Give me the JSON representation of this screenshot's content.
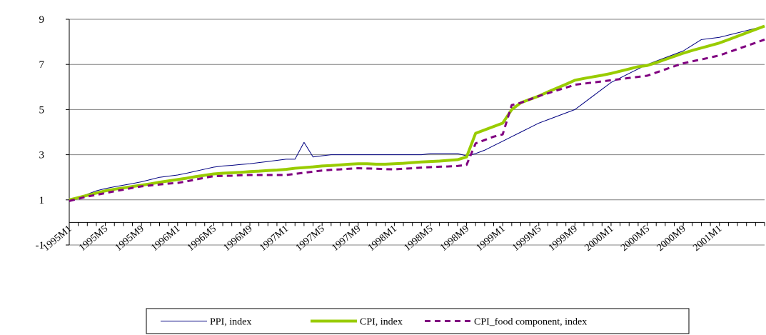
{
  "chart_data": {
    "type": "line",
    "categories": [
      "1995M1",
      null,
      null,
      null,
      "1995M5",
      null,
      null,
      null,
      "1995M9",
      null,
      null,
      null,
      "1996M1",
      null,
      null,
      null,
      "1996M5",
      null,
      null,
      null,
      "1996M9",
      null,
      null,
      null,
      "1997M1",
      null,
      null,
      null,
      "1997M5",
      null,
      null,
      null,
      "1997M9",
      null,
      null,
      null,
      "1998M1",
      null,
      null,
      null,
      "1998M5",
      null,
      null,
      null,
      "1998M9",
      null,
      null,
      null,
      "1999M1",
      null,
      null,
      null,
      "1999M5",
      null,
      null,
      null,
      "1999M9",
      null,
      null,
      null,
      "2000M1",
      null,
      null,
      null,
      "2000M5",
      null,
      null,
      null,
      "2000M9",
      null,
      null,
      null,
      "2001M1",
      null,
      null,
      null,
      null,
      null
    ],
    "series": [
      {
        "name": "PPI, index",
        "color": "#000080",
        "width": 1,
        "dashed": false,
        "values": [
          1.0,
          1.12,
          1.25,
          1.4,
          1.5,
          1.58,
          1.65,
          1.72,
          1.8,
          1.9,
          2.0,
          2.05,
          2.1,
          2.18,
          2.27,
          2.36,
          2.45,
          2.5,
          2.53,
          2.57,
          2.6,
          2.65,
          2.7,
          2.75,
          2.8,
          2.8,
          3.55,
          2.9,
          2.95,
          3.0,
          3.0,
          3.0,
          3.0,
          3.0,
          3.0,
          3.0,
          3.0,
          3.0,
          3.0,
          3.0,
          3.05,
          3.05,
          3.05,
          3.05,
          2.95,
          3.05,
          3.2,
          3.4,
          3.6,
          3.8,
          4.0,
          4.2,
          4.4,
          4.55,
          4.7,
          4.85,
          5.0,
          5.3,
          5.6,
          5.9,
          6.2,
          6.4,
          6.6,
          6.8,
          7.0,
          7.15,
          7.3,
          7.45,
          7.6,
          7.85,
          8.1,
          8.15,
          8.2,
          8.3,
          8.4,
          8.5,
          8.6,
          8.7
        ]
      },
      {
        "name": "CPI, index",
        "color": "#99cc00",
        "width": 4,
        "dashed": false,
        "values": [
          1.0,
          1.1,
          1.2,
          1.3,
          1.4,
          1.47,
          1.53,
          1.59,
          1.65,
          1.71,
          1.78,
          1.84,
          1.9,
          1.96,
          2.03,
          2.09,
          2.15,
          2.18,
          2.2,
          2.22,
          2.25,
          2.27,
          2.3,
          2.32,
          2.35,
          2.4,
          2.43,
          2.46,
          2.5,
          2.52,
          2.55,
          2.58,
          2.6,
          2.6,
          2.58,
          2.58,
          2.6,
          2.62,
          2.65,
          2.68,
          2.7,
          2.72,
          2.75,
          2.78,
          2.9,
          3.95,
          4.1,
          4.25,
          4.4,
          5.0,
          5.3,
          5.45,
          5.6,
          5.78,
          5.95,
          6.12,
          6.3,
          6.38,
          6.45,
          6.52,
          6.6,
          6.7,
          6.8,
          6.9,
          6.95,
          7.08,
          7.22,
          7.36,
          7.5,
          7.62,
          7.73,
          7.84,
          7.95,
          8.1,
          8.25,
          8.4,
          8.55,
          8.7
        ]
      },
      {
        "name": "CPI_food component, index",
        "color": "#800080",
        "width": 3,
        "dashed": true,
        "values": [
          0.95,
          1.05,
          1.15,
          1.22,
          1.3,
          1.38,
          1.45,
          1.53,
          1.6,
          1.64,
          1.68,
          1.72,
          1.75,
          1.82,
          1.9,
          1.98,
          2.05,
          2.06,
          2.07,
          2.09,
          2.1,
          2.1,
          2.1,
          2.1,
          2.1,
          2.15,
          2.2,
          2.25,
          2.3,
          2.33,
          2.35,
          2.38,
          2.4,
          2.39,
          2.38,
          2.36,
          2.35,
          2.38,
          2.4,
          2.43,
          2.45,
          2.47,
          2.48,
          2.5,
          2.55,
          3.5,
          3.65,
          3.8,
          3.9,
          5.2,
          5.3,
          5.45,
          5.6,
          5.72,
          5.85,
          5.97,
          6.1,
          6.15,
          6.2,
          6.25,
          6.3,
          6.35,
          6.4,
          6.45,
          6.5,
          6.64,
          6.78,
          6.92,
          7.05,
          7.14,
          7.22,
          7.31,
          7.4,
          7.54,
          7.68,
          7.82,
          7.96,
          8.1
        ]
      }
    ],
    "ylim": [
      -1,
      9
    ],
    "yticks": [
      -1,
      1,
      3,
      5,
      7,
      9
    ],
    "grid": true,
    "legend": "bottom"
  }
}
